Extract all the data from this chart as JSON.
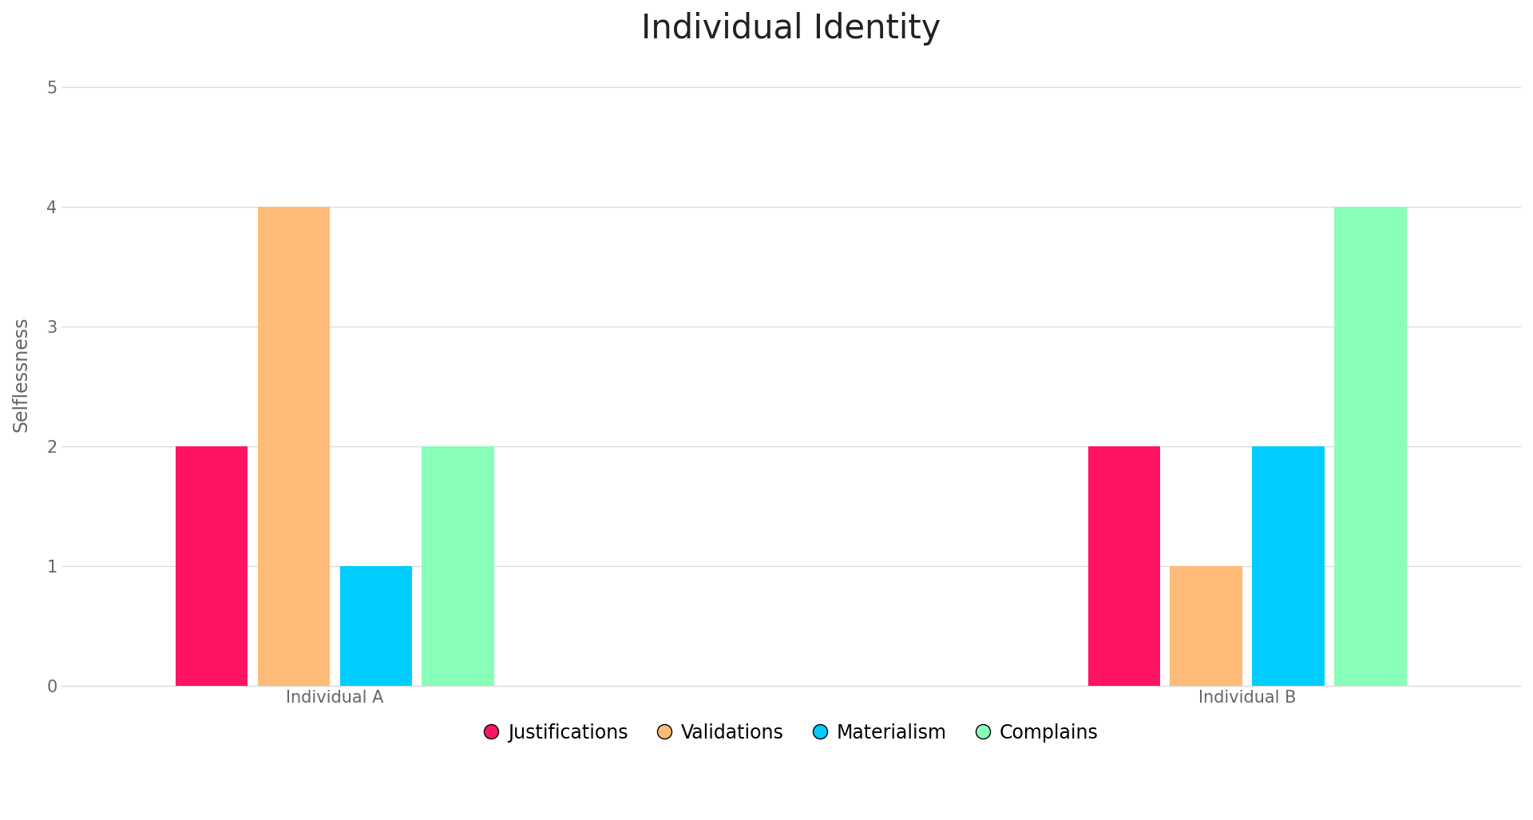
{
  "title": "Individual Identity",
  "ylabel": "Selflessness",
  "categories": [
    "Individual A",
    "Individual B"
  ],
  "series": {
    "Justifications": [
      2,
      2
    ],
    "Validations": [
      4,
      1
    ],
    "Materialism": [
      1,
      2
    ],
    "Complains": [
      2,
      4
    ]
  },
  "colors": {
    "Justifications": "#FF1464",
    "Validations": "#FFBB77",
    "Materialism": "#00CCFF",
    "Complains": "#88FFB8"
  },
  "ylim": [
    0,
    5.2
  ],
  "yticks": [
    0,
    1,
    2,
    3,
    4,
    5
  ],
  "background_color": "#FFFFFF",
  "grid_color": "#DDDDDD",
  "title_fontsize": 30,
  "label_fontsize": 17,
  "tick_fontsize": 15,
  "legend_fontsize": 17,
  "bar_width": 0.18,
  "group_centers": [
    1.0,
    3.0
  ]
}
